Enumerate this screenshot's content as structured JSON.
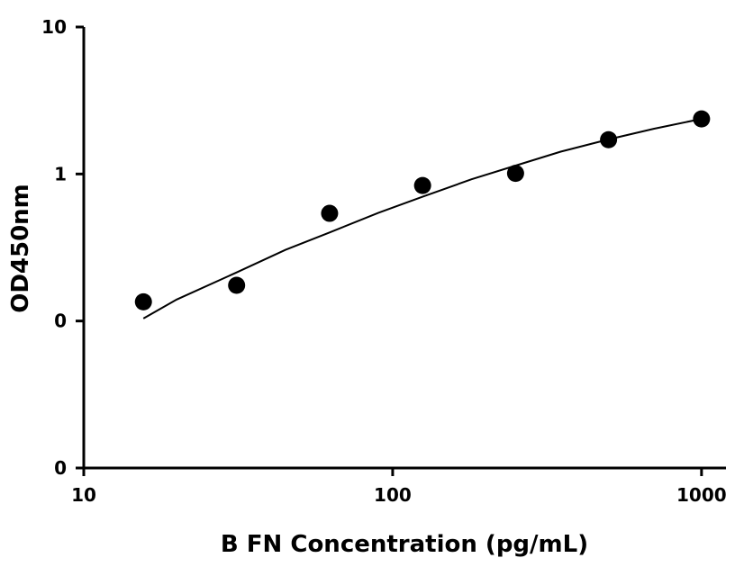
{
  "chart_data": {
    "type": "scatter",
    "title": "",
    "xlabel": "B FN Concentration (pg/mL)",
    "ylabel": "OD450nm",
    "x_scale": "log",
    "y_scale": "log",
    "xlim": [
      10,
      1200
    ],
    "ylim": [
      0.01,
      10
    ],
    "x_ticks": [
      10,
      100,
      1000
    ],
    "x_tick_labels": [
      "10",
      "100",
      "1000"
    ],
    "y_ticks": [
      0.01,
      0.1,
      1,
      10
    ],
    "y_tick_labels": [
      "0",
      "0",
      "1",
      "10"
    ],
    "grid": false,
    "legend": "none",
    "series": [
      {
        "points": [
          {
            "x": 15.6,
            "y": 0.135
          },
          {
            "x": 31.25,
            "y": 0.175
          },
          {
            "x": 62.5,
            "y": 0.54
          },
          {
            "x": 125,
            "y": 0.835
          },
          {
            "x": 250,
            "y": 1.01
          },
          {
            "x": 500,
            "y": 1.71
          },
          {
            "x": 1000,
            "y": 2.37
          }
        ],
        "color": "#000000"
      }
    ],
    "fit_curve": [
      {
        "x": 15.6,
        "y": 0.104
      },
      {
        "x": 20,
        "y": 0.14
      },
      {
        "x": 31.25,
        "y": 0.214
      },
      {
        "x": 45,
        "y": 0.305
      },
      {
        "x": 62.5,
        "y": 0.4
      },
      {
        "x": 90,
        "y": 0.545
      },
      {
        "x": 125,
        "y": 0.7
      },
      {
        "x": 180,
        "y": 0.92
      },
      {
        "x": 250,
        "y": 1.14
      },
      {
        "x": 350,
        "y": 1.42
      },
      {
        "x": 500,
        "y": 1.72
      },
      {
        "x": 700,
        "y": 2.03
      },
      {
        "x": 1000,
        "y": 2.37
      }
    ],
    "colors": {
      "axis": "#000000",
      "marker": "#000000",
      "curve": "#000000"
    }
  }
}
